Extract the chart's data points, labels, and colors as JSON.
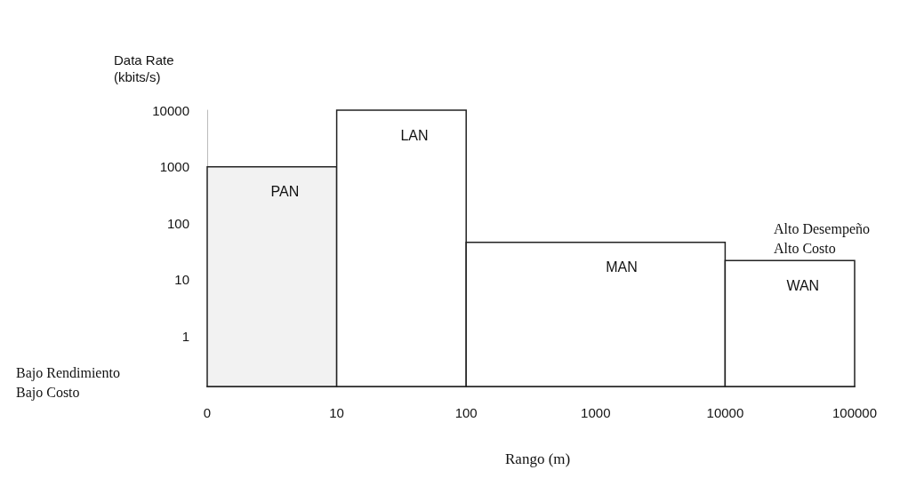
{
  "chart_data": {
    "type": "histogram",
    "xlabel": "Rango (m)",
    "ylabel": "Data Rate\n(kbits/s)",
    "bins": [
      1,
      10,
      100,
      10000,
      100000
    ],
    "values": [
      1000,
      10000,
      46,
      22
    ],
    "colors": [
      "#f2f2f2",
      "#ffffff",
      "#ffffff",
      "#ffffff"
    ],
    "log": "xy",
    "grid": false,
    "xlim": [
      0,
      100000
    ],
    "xticks": [
      0,
      10,
      100,
      1000,
      10000,
      100000
    ],
    "ylim": [
      0.13,
      10000
    ],
    "yticks": [
      1,
      10,
      100,
      1000,
      10000
    ],
    "annotations": [
      "Bajo Rendimiento\nBajo Costo",
      "Alto Desempeño\nAlto Costo",
      "PAN",
      "LAN",
      "MAN",
      "WAN"
    ]
  }
}
